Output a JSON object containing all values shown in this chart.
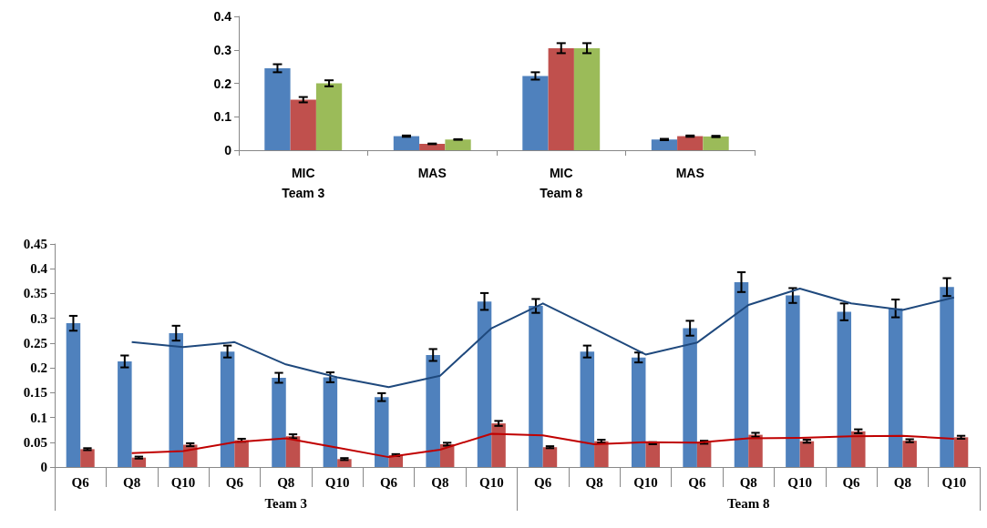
{
  "chart_data": [
    {
      "type": "bar",
      "categories": [
        "MIC\nTeam 3",
        "MAS",
        "MIC\nTeam 8",
        "MAS"
      ],
      "ylim": [
        0,
        0.4
      ],
      "yticks": [
        0,
        0.1,
        0.2,
        0.3,
        0.4
      ],
      "grid": false,
      "series": [
        {
          "color": "#4f81bd",
          "values": [
            0.245,
            0.042,
            0.222,
            0.032
          ],
          "errors": [
            0.012,
            0.002,
            0.011,
            0.002
          ]
        },
        {
          "color": "#c0504d",
          "values": [
            0.151,
            0.019,
            0.305,
            0.042
          ],
          "errors": [
            0.008,
            0.001,
            0.015,
            0.002
          ]
        },
        {
          "color": "#9bbb59",
          "values": [
            0.2,
            0.032,
            0.305,
            0.041
          ],
          "errors": [
            0.009,
            0.001,
            0.015,
            0.002
          ]
        }
      ]
    },
    {
      "type": "bar",
      "categories": [
        "Q6",
        "Q8",
        "Q10",
        "Q6",
        "Q8",
        "Q10",
        "Q6",
        "Q8",
        "Q10",
        "Q6",
        "Q8",
        "Q10",
        "Q6",
        "Q8",
        "Q10",
        "Q6",
        "Q8",
        "Q10"
      ],
      "ylim": [
        0,
        0.45
      ],
      "yticks": [
        0,
        0.05,
        0.1,
        0.15,
        0.2,
        0.25,
        0.3,
        0.35,
        0.4,
        0.45
      ],
      "grid": false,
      "annotations": [
        "Team 3",
        "Team 8"
      ],
      "series": [
        {
          "color": "#4f81bd",
          "values": [
            0.29,
            0.213,
            0.27,
            0.233,
            0.18,
            0.181,
            0.141,
            0.226,
            0.334,
            0.325,
            0.233,
            0.221,
            0.28,
            0.373,
            0.346,
            0.313,
            0.32,
            0.363
          ],
          "errors": [
            0.015,
            0.012,
            0.015,
            0.012,
            0.01,
            0.01,
            0.008,
            0.012,
            0.017,
            0.014,
            0.012,
            0.01,
            0.015,
            0.02,
            0.015,
            0.017,
            0.018,
            0.018
          ]
        },
        {
          "color": "#c0504d",
          "values": [
            0.036,
            0.019,
            0.045,
            0.054,
            0.062,
            0.016,
            0.024,
            0.046,
            0.088,
            0.04,
            0.052,
            0.048,
            0.05,
            0.065,
            0.052,
            0.072,
            0.053,
            0.06
          ],
          "errors": [
            0.002,
            0.002,
            0.003,
            0.003,
            0.004,
            0.002,
            0.002,
            0.003,
            0.005,
            0.002,
            0.003,
            0.002,
            0.003,
            0.004,
            0.003,
            0.004,
            0.003,
            0.003
          ]
        },
        {
          "type": "line",
          "color": "#1f497d",
          "marker": "none",
          "values": [
            null,
            0.252,
            0.242,
            0.252,
            0.207,
            0.181,
            0.161,
            0.184,
            0.28,
            0.33,
            0.279,
            0.227,
            0.251,
            0.327,
            0.36,
            0.33,
            0.317,
            0.342
          ]
        },
        {
          "type": "line",
          "color": "#c00000",
          "marker": "none",
          "values": [
            null,
            0.028,
            0.032,
            0.05,
            0.058,
            0.039,
            0.02,
            0.035,
            0.067,
            0.064,
            0.046,
            0.05,
            0.049,
            0.058,
            0.059,
            0.062,
            0.063,
            0.057
          ]
        }
      ]
    }
  ]
}
